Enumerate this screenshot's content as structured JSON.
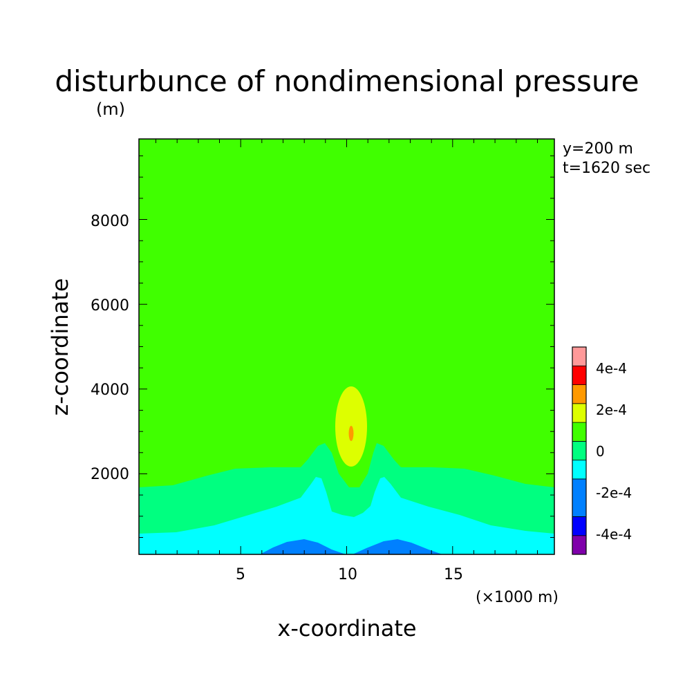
{
  "chart_data": {
    "type": "heatmap",
    "title": "disturbunce of nondimensional pressure",
    "units_label": "(m)",
    "xlabel": "x-coordinate",
    "ylabel": "z-coordinate",
    "x_unit_label": "(×1000 m)",
    "annotations": [
      "y=200 m",
      "t=1620 sec"
    ],
    "xlim": [
      0.2,
      19.8
    ],
    "ylim": [
      100,
      9900
    ],
    "x_ticks": [
      5,
      10,
      15
    ],
    "y_ticks": [
      2000,
      4000,
      6000,
      8000
    ],
    "x_tick_labels": [
      "5",
      "10",
      "15"
    ],
    "y_tick_labels": [
      "2000",
      "4000",
      "6000",
      "8000"
    ],
    "colorbar": {
      "levels": [
        {
          "range": [
            -0.0005,
            -0.0004
          ],
          "color": "#7f00aa"
        },
        {
          "range": [
            -0.0004,
            -0.0003
          ],
          "color": "#0000ff"
        },
        {
          "range": [
            -0.0003,
            -0.0001
          ],
          "color": "#0080ff"
        },
        {
          "range": [
            -0.0001,
            0.0
          ],
          "color": "#00ffff"
        },
        {
          "range": [
            0.0,
            0.0001
          ],
          "color": "#00ff80"
        },
        {
          "range": [
            0.0001,
            0.0002
          ],
          "color": "#40ff00"
        },
        {
          "range": [
            0.0002,
            0.0003
          ],
          "color": "#ddff00"
        },
        {
          "range": [
            0.0003,
            0.0004
          ],
          "color": "#ff9900"
        },
        {
          "range": [
            0.0004,
            0.0005
          ],
          "color": "#ff0000"
        },
        {
          "range": [
            0.0005,
            0.0006
          ],
          "color": "#ff9999"
        }
      ],
      "tick_labels": [
        "4e-4",
        "2e-4",
        "0",
        "-2e-4",
        "-4e-4"
      ],
      "tick_values": [
        0.0004,
        0.0002,
        0.0,
        -0.0002,
        -0.0004
      ]
    },
    "regions": [
      {
        "name": "background",
        "value_range": [
          0.0001,
          0.0002
        ],
        "color": "#40ff00"
      },
      {
        "name": "low-level-band",
        "value_range": [
          0.0,
          0.0001
        ],
        "color": "#00ff80",
        "z_top_approx": 2100
      },
      {
        "name": "surface-band",
        "value_range": [
          -0.0001,
          0.0
        ],
        "color": "#00ffff",
        "z_top_approx": 600
      },
      {
        "name": "surface-minima",
        "value_range": [
          -0.0003,
          -0.0001
        ],
        "color": "#0080ff",
        "x_centers": [
          8.0,
          12.3
        ],
        "z_top_approx": 350
      },
      {
        "name": "central-maximum",
        "value_range": [
          0.0002,
          0.0003
        ],
        "color": "#ddff00",
        "x_center": 10.2,
        "z_range": [
          2150,
          4050
        ]
      },
      {
        "name": "central-core",
        "value_range": [
          0.0003,
          0.0004
        ],
        "color": "#ff9900",
        "x_center": 10.2,
        "z_center": 2950
      }
    ]
  }
}
